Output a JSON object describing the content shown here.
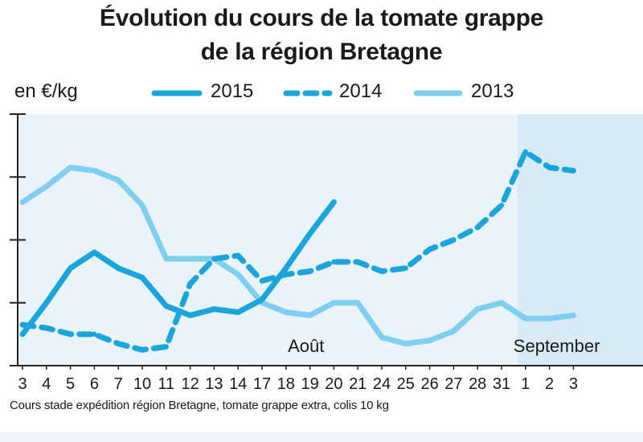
{
  "chart_data": {
    "type": "line",
    "title_line1": "Évolution du cours de la tomate grappe",
    "title_line2": "de la région Bretagne",
    "ylabel": "en €/kg",
    "source_note": "Cours stade expédition région Bretagne, tomate grappe extra, colis 10 kg",
    "categories": [
      "3",
      "4",
      "5",
      "6",
      "7",
      "10",
      "11",
      "12",
      "13",
      "14",
      "17",
      "18",
      "19",
      "20",
      "21",
      "24",
      "25",
      "26",
      "27",
      "28",
      "31",
      "1",
      "2",
      "3"
    ],
    "month_labels": [
      {
        "label": "Août",
        "at_index": 11.5
      },
      {
        "label": "September",
        "at_index": 21
      }
    ],
    "shaded_from_index": 20.5,
    "ylim": [
      0,
      4
    ],
    "grid": false,
    "legend_position": "top",
    "series": [
      {
        "name": "2015",
        "style": "solid-thick",
        "color": "#1aa6dc",
        "values": [
          0.5,
          1.0,
          1.55,
          1.8,
          1.55,
          1.4,
          0.95,
          0.8,
          0.9,
          0.85,
          1.05,
          1.55,
          2.1,
          2.6,
          null,
          null,
          null,
          null,
          null,
          null,
          null,
          null,
          null,
          null
        ]
      },
      {
        "name": "2014",
        "style": "dashed",
        "color": "#1aa6dc",
        "values": [
          0.65,
          0.6,
          0.5,
          0.5,
          0.35,
          0.25,
          0.3,
          1.3,
          1.7,
          1.75,
          1.35,
          1.45,
          1.5,
          1.65,
          1.65,
          1.5,
          1.55,
          1.85,
          2.0,
          2.2,
          2.55,
          3.4,
          3.15,
          3.1
        ]
      },
      {
        "name": "2013",
        "style": "solid-light",
        "color": "#7fd0f0",
        "values": [
          2.6,
          2.85,
          3.15,
          3.1,
          2.95,
          2.55,
          1.7,
          1.7,
          1.7,
          1.45,
          1.0,
          0.85,
          0.8,
          1.0,
          1.0,
          0.45,
          0.35,
          0.4,
          0.55,
          0.9,
          1.0,
          0.75,
          0.75,
          0.8
        ]
      }
    ]
  }
}
